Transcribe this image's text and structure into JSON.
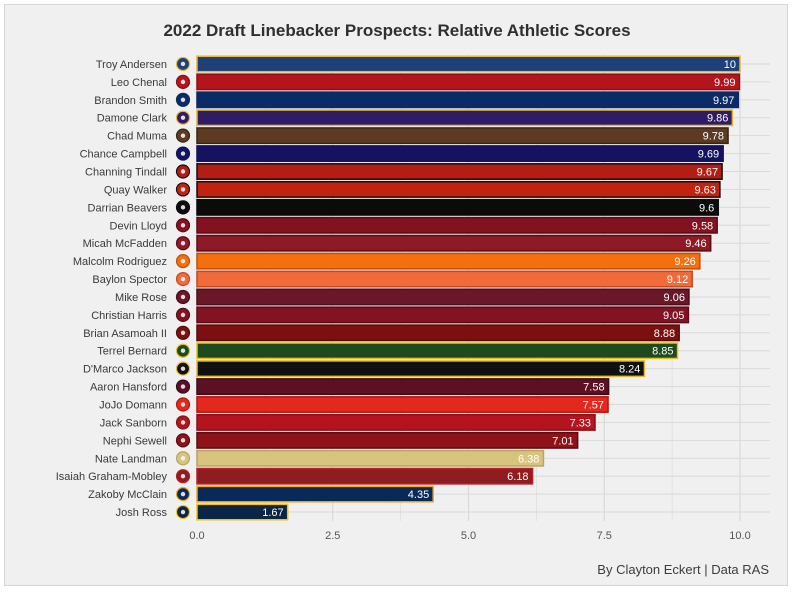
{
  "chart_data": {
    "type": "bar",
    "orientation": "horizontal",
    "title": "2022 Draft Linebacker Prospects: Relative Athletic Scores",
    "xlabel": "",
    "ylabel": "",
    "xlim": [
      0,
      10
    ],
    "x_ticks": [
      "0.0",
      "2.5",
      "5.0",
      "7.5",
      "10.0"
    ],
    "x_tick_values": [
      0,
      2.5,
      5,
      7.5,
      10
    ],
    "grid": true,
    "categories": [
      "Troy Andersen",
      "Leo Chenal",
      "Brandon Smith",
      "Damone Clark",
      "Chad Muma",
      "Chance Campbell",
      "Channing Tindall",
      "Quay Walker",
      "Darrian Beavers",
      "Devin Lloyd",
      "Micah McFadden",
      "Malcolm Rodriguez",
      "Baylon Spector",
      "Mike Rose",
      "Christian Harris",
      "Brian Asamoah II",
      "Terrel Bernard",
      "D'Marco Jackson",
      "Aaron Hansford",
      "JoJo Domann",
      "Jack Sanborn",
      "Nephi Sewell",
      "Nate Landman",
      "Isaiah Graham-Mobley",
      "Zakoby McClain",
      "Josh Ross"
    ],
    "values": [
      10,
      9.99,
      9.97,
      9.86,
      9.78,
      9.69,
      9.67,
      9.63,
      9.6,
      9.58,
      9.46,
      9.26,
      9.12,
      9.06,
      9.05,
      8.88,
      8.85,
      8.24,
      7.58,
      7.57,
      7.33,
      7.01,
      6.38,
      6.18,
      4.35,
      1.67
    ],
    "value_labels": [
      "10",
      "9.99",
      "9.97",
      "9.86",
      "9.78",
      "9.69",
      "9.67",
      "9.63",
      "9.6",
      "9.58",
      "9.46",
      "9.26",
      "9.12",
      "9.06",
      "9.05",
      "8.88",
      "8.85",
      "8.24",
      "7.58",
      "7.57",
      "7.33",
      "7.01",
      "6.38",
      "6.18",
      "4.35",
      "1.67"
    ],
    "bar_colors": [
      "#1e3f77",
      "#b3141e",
      "#0b2b66",
      "#301b66",
      "#5c3b22",
      "#15135f",
      "#b41d16",
      "#c2220f",
      "#0b0b0b",
      "#84111f",
      "#8d1a26",
      "#f46f0e",
      "#f06a3a",
      "#6a1728",
      "#821322",
      "#7c0f0f",
      "#1f4a1e",
      "#111111",
      "#5d0f24",
      "#e4281e",
      "#b3141e",
      "#8e1219",
      "#d7c47e",
      "#8f1c1f",
      "#072a59",
      "#0b2546"
    ],
    "border_colors": [
      "#e6b82e",
      "#8a1118",
      "#0b2b66",
      "#e6b82e",
      "#3a2414",
      "#15135f",
      "#111111",
      "#111111",
      "#0b0b0b",
      "#5a0c15",
      "#5a0c15",
      "#c04f08",
      "#c24a1f",
      "#4a0f1c",
      "#5a0c15",
      "#5a0a0a",
      "#e6c21f",
      "#e6b82e",
      "#3d0a18",
      "#b31812",
      "#8a1118",
      "#5a0c12",
      "#b8a463",
      "#b81f2a",
      "#f5a623",
      "#f5c400"
    ]
  },
  "team_icons": [
    "mountain-goat-icon",
    "w-logo-icon",
    "lion-icon",
    "husky-icon",
    "cowboy-icon",
    "ole-miss-icon",
    "g-logo-icon",
    "g-logo-icon",
    "bearcat-c-icon",
    "drum-u-icon",
    "iu-logo-icon",
    "hog-icon",
    "paw-icon",
    "cyclone-icon",
    "ring-a-icon",
    "ou-logo-icon",
    "bu-logo-icon",
    "a-logo-icon",
    "atm-logo-icon",
    "n-logo-icon",
    "w-logo-icon",
    "drum-u-icon",
    "buffalo-icon",
    "bc-logo-icon",
    "au-logo-icon",
    "m-logo-icon"
  ],
  "caption": "By Clayton Eckert | Data RAS",
  "colors": {
    "panel": "#f0f0f0",
    "grid": "#d9d9d9",
    "text": "#2f2f2f"
  }
}
